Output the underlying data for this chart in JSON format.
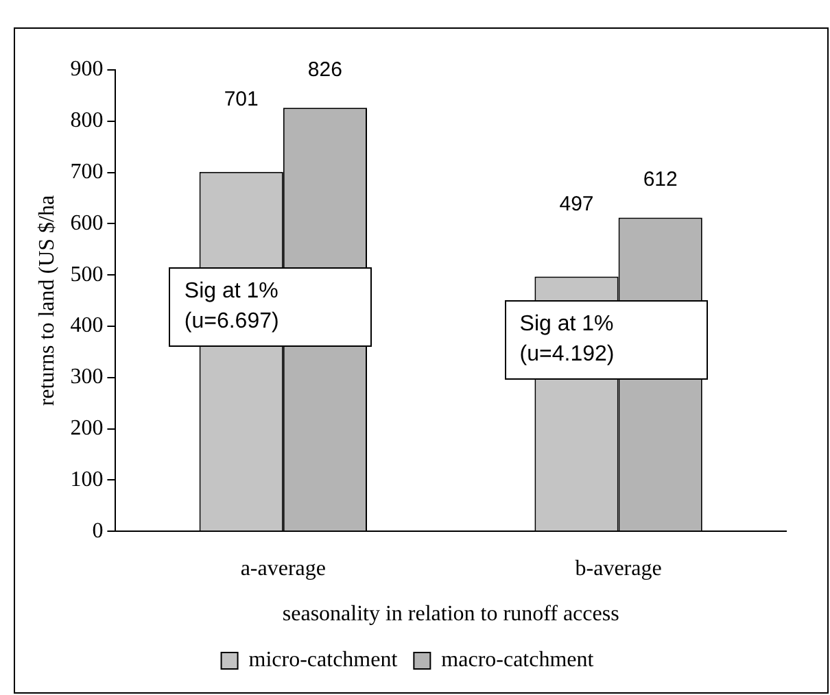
{
  "chart_data": {
    "type": "bar",
    "xlabel": "seasonality in relation to runoff access",
    "ylabel": "returns to land (US $/ha",
    "categories": [
      "a-average",
      "b-average"
    ],
    "series": [
      {
        "name": "micro-catchment",
        "color": "#c4c4c4",
        "values": [
          701,
          497
        ]
      },
      {
        "name": "macro-catchment",
        "color": "#b4b4b4",
        "values": [
          826,
          612
        ]
      }
    ],
    "ylim": [
      0,
      900
    ],
    "yticks": [
      0,
      100,
      200,
      300,
      400,
      500,
      600,
      700,
      800,
      900
    ],
    "data_labels": true,
    "grid": false,
    "legend": "bottom",
    "annotations": [
      "Sig at 1%\n(u=6.697)",
      "Sig at 1%\n(u=4.192)"
    ]
  }
}
